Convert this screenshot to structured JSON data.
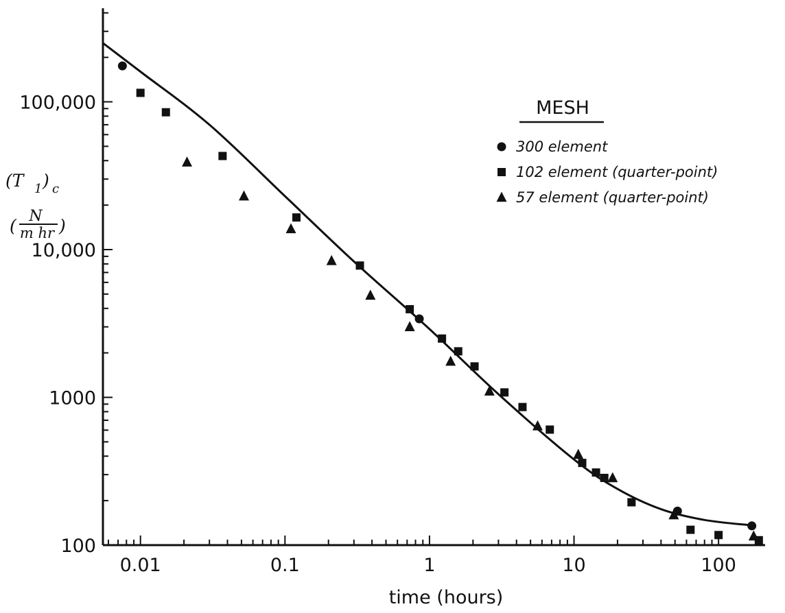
{
  "chart_data": {
    "type": "scatter",
    "x_scale": "log",
    "y_scale": "log",
    "xlim": [
      0.0055,
      210
    ],
    "ylim": [
      100,
      430000
    ],
    "xlabel": "time (hours)",
    "ylabel": {
      "main": "(T",
      "subscript": "1",
      "close": ")",
      "outer_sub": "c",
      "unit_num": "N",
      "unit_den": "m hr",
      "lparen": "(",
      "rparen": ")"
    },
    "x_ticks": [
      {
        "value": 0.01,
        "label": "0.01"
      },
      {
        "value": 0.1,
        "label": "0.1"
      },
      {
        "value": 1,
        "label": "1"
      },
      {
        "value": 10,
        "label": "10"
      },
      {
        "value": 100,
        "label": "100"
      }
    ],
    "y_ticks": [
      {
        "value": 100,
        "label": "100"
      },
      {
        "value": 1000,
        "label": "1000"
      },
      {
        "value": 10000,
        "label": "10,000"
      },
      {
        "value": 100000,
        "label": "100,000"
      }
    ],
    "legend": {
      "title": "MESH",
      "placement": "upper-right"
    },
    "grid": false,
    "fit_curve": {
      "x": [
        0.0055,
        0.01,
        0.03,
        0.1,
        0.3,
        1,
        3,
        10,
        20,
        40,
        80,
        170
      ],
      "y": [
        250000,
        160000,
        70000,
        23000,
        8300,
        2900,
        1050,
        380,
        240,
        175,
        148,
        136
      ]
    },
    "series": [
      {
        "name": "300 element",
        "marker": "circle",
        "x": [
          0.0075,
          0.85,
          52,
          170
        ],
        "y": [
          175000,
          3400,
          170,
          135
        ]
      },
      {
        "name": "102 element (quarter-point)",
        "marker": "square",
        "x": [
          0.01,
          0.015,
          0.037,
          0.12,
          0.33,
          0.73,
          1.22,
          1.58,
          2.05,
          3.3,
          4.4,
          6.8,
          11.4,
          14.2,
          16.2,
          25,
          64,
          100,
          190
        ],
        "y": [
          115000,
          85000,
          43000,
          16500,
          7800,
          3950,
          2500,
          2050,
          1620,
          1080,
          860,
          605,
          360,
          310,
          285,
          195,
          127,
          117,
          108
        ]
      },
      {
        "name": "57 element (quarter-point)",
        "marker": "triangle",
        "x": [
          0.021,
          0.052,
          0.11,
          0.21,
          0.39,
          0.73,
          1.4,
          2.6,
          5.6,
          10.7,
          18.5,
          49,
          175
        ],
        "y": [
          39000,
          23000,
          13800,
          8400,
          4900,
          3000,
          1750,
          1100,
          640,
          410,
          285,
          160,
          115
        ]
      }
    ]
  }
}
